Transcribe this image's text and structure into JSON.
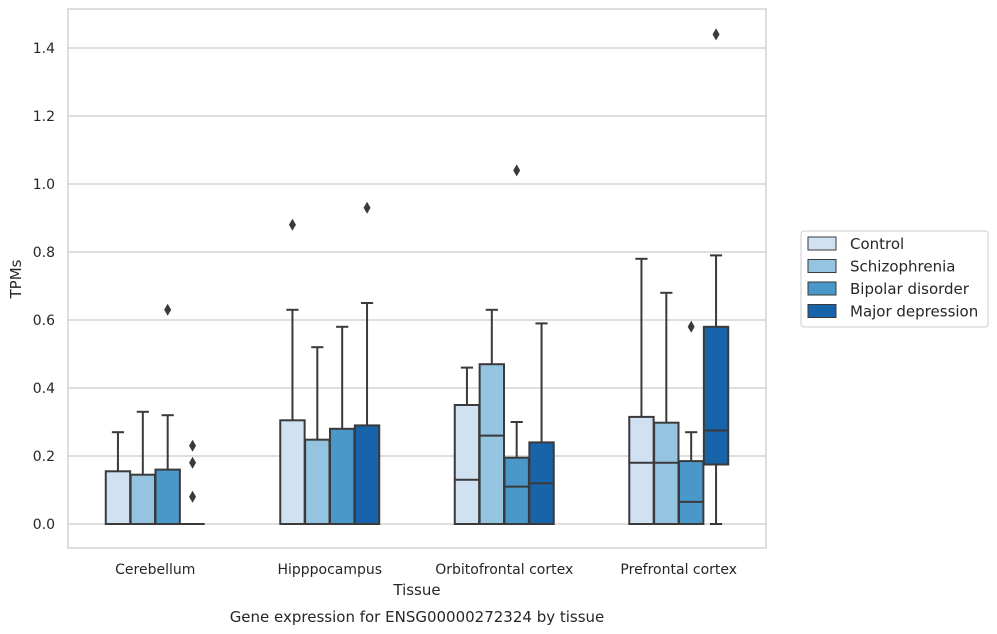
{
  "chart_data": {
    "type": "box",
    "caption": "Gene expression for ENSG00000272324 by tissue",
    "xlabel": "Tissue",
    "ylabel": "TPMs",
    "ylim": [
      -0.07,
      1.52
    ],
    "yticks": [
      0.0,
      0.2,
      0.4,
      0.6,
      0.8,
      1.0,
      1.2,
      1.4
    ],
    "ytick_labels": [
      "0.0",
      "0.2",
      "0.4",
      "0.6",
      "0.8",
      "1.0",
      "1.2",
      "1.4"
    ],
    "grid": true,
    "legend_position": "right",
    "categories": [
      "Cerebellum",
      "Hipppocampus",
      "Orbitofrontal cortex",
      "Prefrontal cortex"
    ],
    "series": [
      {
        "name": "Control",
        "color": "#d0e1f2",
        "boxes": [
          {
            "whislo": 0.0,
            "q1": 0.0,
            "med": 0.0,
            "q3": 0.155,
            "whishi": 0.27,
            "fliers": []
          },
          {
            "whislo": 0.0,
            "q1": 0.0,
            "med": 0.0,
            "q3": 0.305,
            "whishi": 0.63,
            "fliers": [
              0.88
            ]
          },
          {
            "whislo": 0.0,
            "q1": 0.0,
            "med": 0.13,
            "q3": 0.35,
            "whishi": 0.46,
            "fliers": []
          },
          {
            "whislo": 0.0,
            "q1": 0.0,
            "med": 0.18,
            "q3": 0.315,
            "whishi": 0.78,
            "fliers": []
          }
        ]
      },
      {
        "name": "Schizophrenia",
        "color": "#94c4df",
        "boxes": [
          {
            "whislo": 0.0,
            "q1": 0.0,
            "med": 0.0,
            "q3": 0.145,
            "whishi": 0.33,
            "fliers": []
          },
          {
            "whislo": 0.0,
            "q1": 0.0,
            "med": 0.0,
            "q3": 0.248,
            "whishi": 0.52,
            "fliers": []
          },
          {
            "whislo": 0.0,
            "q1": 0.0,
            "med": 0.26,
            "q3": 0.47,
            "whishi": 0.63,
            "fliers": []
          },
          {
            "whislo": 0.0,
            "q1": 0.0,
            "med": 0.18,
            "q3": 0.298,
            "whishi": 0.68,
            "fliers": []
          }
        ]
      },
      {
        "name": "Bipolar disorder",
        "color": "#4a98c9",
        "boxes": [
          {
            "whislo": 0.0,
            "q1": 0.0,
            "med": 0.0,
            "q3": 0.16,
            "whishi": 0.32,
            "fliers": [
              0.63
            ]
          },
          {
            "whislo": 0.0,
            "q1": 0.0,
            "med": 0.0,
            "q3": 0.28,
            "whishi": 0.58,
            "fliers": []
          },
          {
            "whislo": 0.0,
            "q1": 0.0,
            "med": 0.11,
            "q3": 0.195,
            "whishi": 0.3,
            "fliers": [
              1.04
            ]
          },
          {
            "whislo": 0.0,
            "q1": 0.0,
            "med": 0.065,
            "q3": 0.185,
            "whishi": 0.27,
            "fliers": [
              0.58
            ]
          }
        ]
      },
      {
        "name": "Major depression",
        "color": "#1764ab",
        "boxes": [
          {
            "whislo": 0.0,
            "q1": 0.0,
            "med": 0.0,
            "q3": 0.0,
            "whishi": 0.0,
            "fliers": [
              0.08,
              0.18,
              0.23
            ]
          },
          {
            "whislo": 0.0,
            "q1": 0.0,
            "med": 0.0,
            "q3": 0.29,
            "whishi": 0.65,
            "fliers": [
              0.93
            ]
          },
          {
            "whislo": 0.0,
            "q1": 0.0,
            "med": 0.12,
            "q3": 0.24,
            "whishi": 0.59,
            "fliers": []
          },
          {
            "whislo": 0.0,
            "q1": 0.175,
            "med": 0.275,
            "q3": 0.58,
            "whishi": 0.79,
            "fliers": [
              1.44
            ]
          }
        ]
      }
    ]
  }
}
